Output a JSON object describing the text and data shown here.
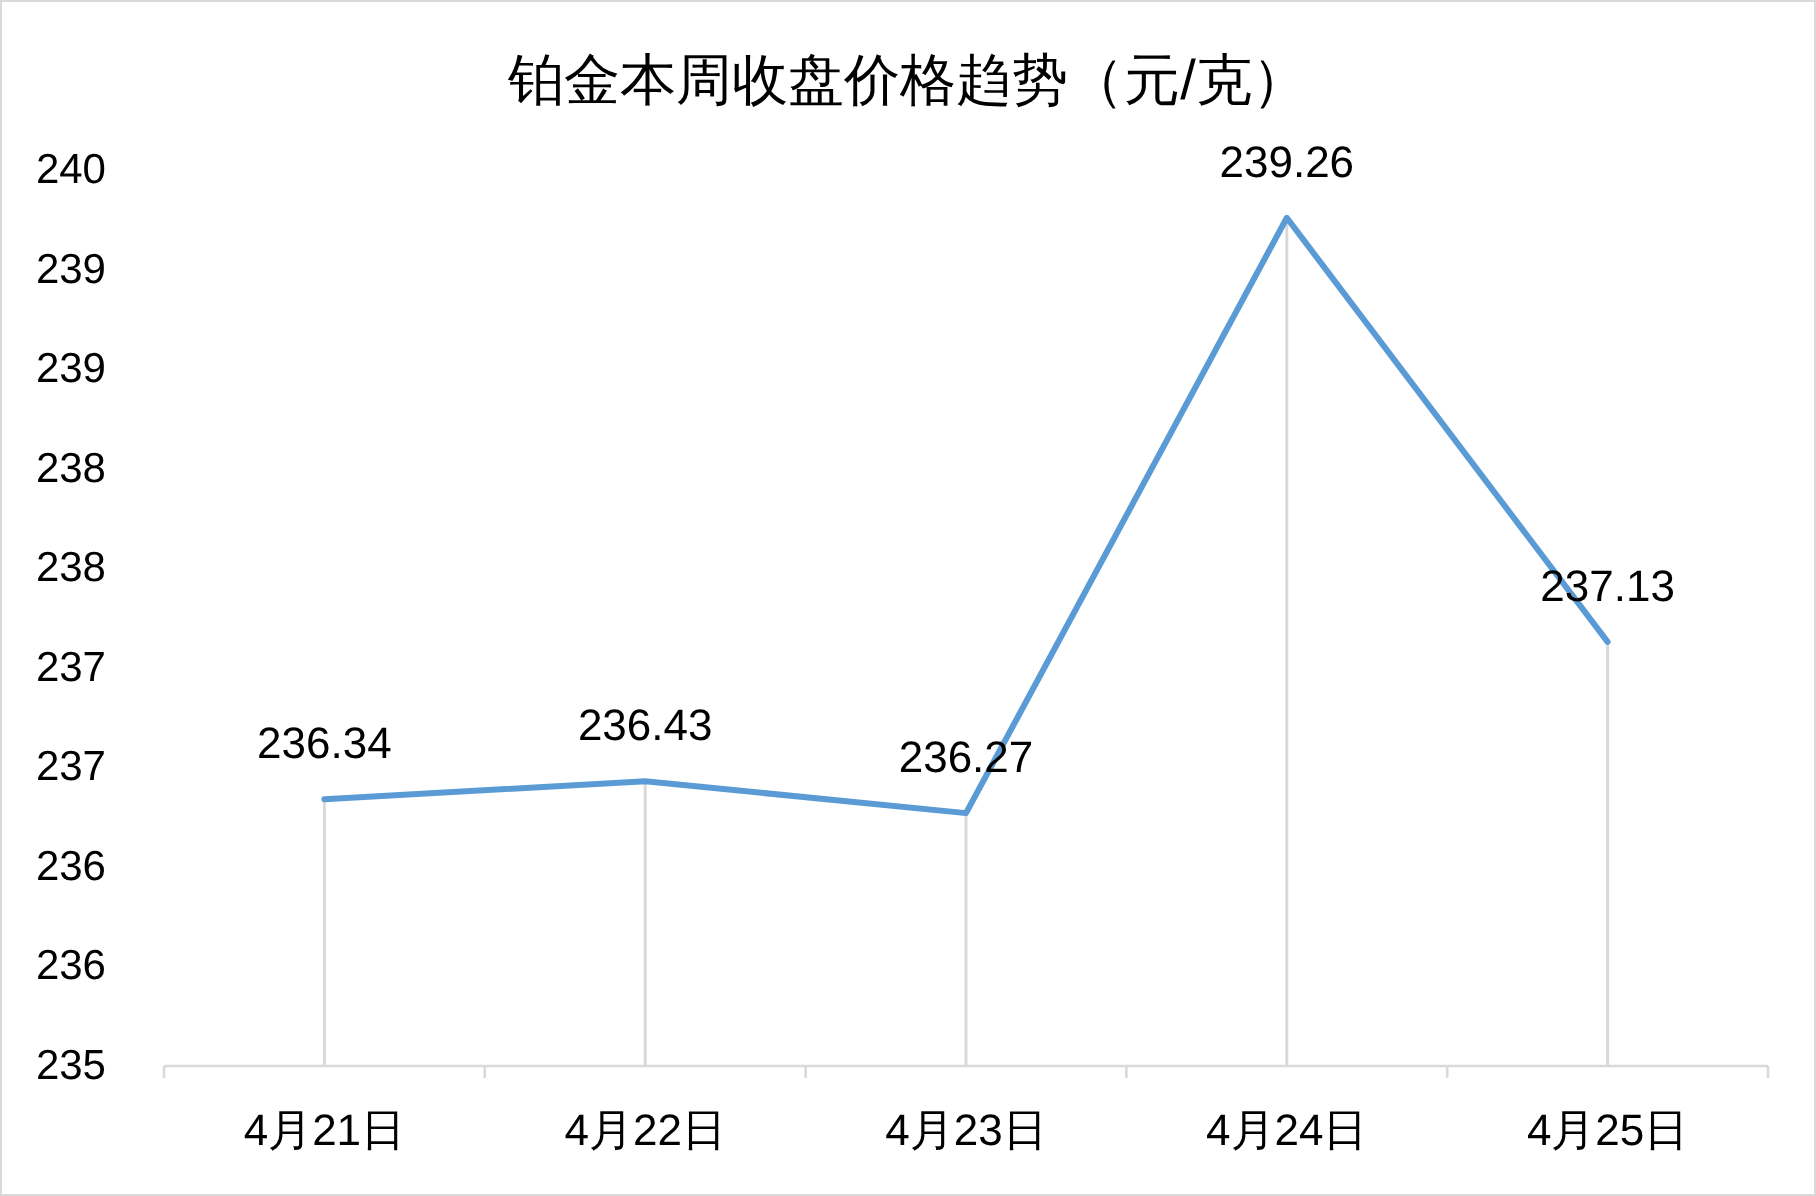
{
  "chart_data": {
    "type": "line",
    "title": "铂金本周收盘价格趋势（元/克）",
    "categories": [
      "4月21日",
      "4月22日",
      "4月23日",
      "4月24日",
      "4月25日"
    ],
    "series": [
      {
        "type": "bar",
        "color": "#d9d9d9",
        "values": [
          236.34,
          236.43,
          236.27,
          239.26,
          237.13
        ]
      },
      {
        "color": "#5b9bd5",
        "values": [
          236.34,
          236.43,
          236.27,
          239.26,
          237.13
        ],
        "value_labels": [
          "236.34",
          "236.43",
          "236.27",
          "239.26",
          "237.13"
        ]
      }
    ],
    "ylim": [
      235,
      239.5
    ],
    "yticks": [
      235,
      {
        "value": 235.5,
        "label": "236"
      },
      236,
      {
        "value": 236.5,
        "label": "237"
      },
      237,
      {
        "value": 237.5,
        "label": "238"
      },
      238,
      {
        "value": 238.5,
        "label": "239"
      },
      239,
      {
        "value": 239.5,
        "label": "240"
      }
    ]
  }
}
